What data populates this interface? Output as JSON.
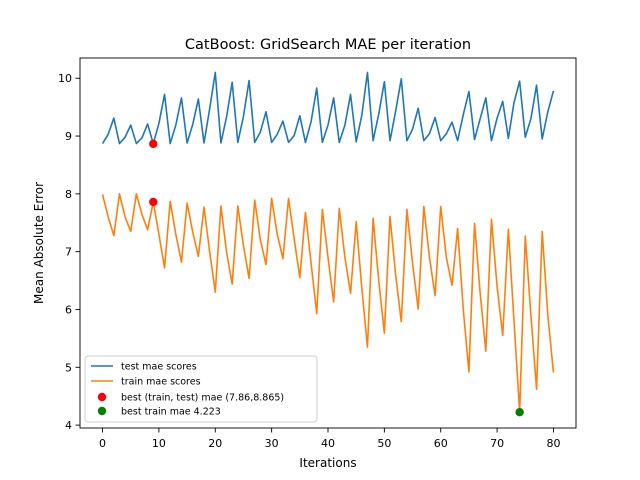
{
  "chart_data": {
    "type": "line",
    "title": "CatBoost: GridSearch MAE per iteration",
    "xlabel": "Iterations",
    "ylabel": "Mean Absolute Error",
    "xlim": [
      -4,
      84
    ],
    "ylim": [
      3.95,
      10.35
    ],
    "xticks": [
      0,
      10,
      20,
      30,
      40,
      50,
      60,
      70,
      80
    ],
    "yticks": [
      4,
      5,
      6,
      7,
      8,
      9,
      10
    ],
    "grid": false,
    "legend": "lower-left",
    "x": [
      0,
      1,
      2,
      3,
      4,
      5,
      6,
      7,
      8,
      9,
      10,
      11,
      12,
      13,
      14,
      15,
      16,
      17,
      18,
      19,
      20,
      21,
      22,
      23,
      24,
      25,
      26,
      27,
      28,
      29,
      30,
      31,
      32,
      33,
      34,
      35,
      36,
      37,
      38,
      39,
      40,
      41,
      42,
      43,
      44,
      45,
      46,
      47,
      48,
      49,
      50,
      51,
      52,
      53,
      54,
      55,
      56,
      57,
      58,
      59,
      60,
      61,
      62,
      63,
      64,
      65,
      66,
      67,
      68,
      69,
      70,
      71,
      72,
      73,
      74,
      75,
      76,
      77,
      78,
      79,
      80
    ],
    "series": [
      {
        "name": "test mae scores",
        "color": "#1f77b4",
        "values": [
          8.87,
          9.03,
          9.31,
          8.87,
          8.98,
          9.19,
          8.87,
          8.97,
          9.21,
          8.865,
          9.22,
          9.72,
          8.87,
          9.19,
          9.66,
          8.88,
          9.2,
          9.64,
          8.88,
          9.47,
          10.1,
          8.88,
          9.33,
          9.93,
          8.89,
          9.34,
          9.96,
          8.89,
          9.07,
          9.42,
          8.89,
          9.03,
          9.26,
          8.89,
          9.01,
          9.35,
          8.89,
          9.25,
          9.83,
          8.89,
          9.19,
          9.66,
          8.89,
          9.19,
          9.72,
          8.9,
          9.36,
          10.1,
          8.92,
          9.38,
          9.94,
          8.92,
          9.43,
          9.99,
          8.92,
          9.12,
          9.48,
          8.92,
          9.04,
          9.32,
          8.92,
          9.04,
          9.24,
          8.92,
          9.37,
          9.77,
          8.94,
          9.3,
          9.66,
          8.92,
          9.31,
          9.6,
          8.96,
          9.58,
          9.95,
          8.98,
          9.3,
          9.88,
          8.95,
          9.42,
          9.78
        ]
      },
      {
        "name": "train mae scores",
        "color": "#ff7f0e",
        "values": [
          7.99,
          7.6,
          7.28,
          8.0,
          7.6,
          7.35,
          8.0,
          7.64,
          7.38,
          7.86,
          7.3,
          6.72,
          7.87,
          7.3,
          6.82,
          7.84,
          7.34,
          6.92,
          7.77,
          7.0,
          6.3,
          7.79,
          6.99,
          6.44,
          7.79,
          7.1,
          6.54,
          7.89,
          7.2,
          6.78,
          7.92,
          7.3,
          6.88,
          7.92,
          7.22,
          6.55,
          7.68,
          6.8,
          5.93,
          7.73,
          6.9,
          6.13,
          7.75,
          6.9,
          6.28,
          7.52,
          6.37,
          5.35,
          7.58,
          6.5,
          5.59,
          7.61,
          6.6,
          5.79,
          7.73,
          6.8,
          6.01,
          7.78,
          6.9,
          6.24,
          7.78,
          6.9,
          6.42,
          7.4,
          6.0,
          4.92,
          7.49,
          6.28,
          5.28,
          7.56,
          6.4,
          5.55,
          7.39,
          5.8,
          4.223,
          7.27,
          5.9,
          4.62,
          7.35,
          5.9,
          4.91
        ]
      }
    ],
    "points": [
      {
        "name": "best (train, test) mae (7.86,8.865)",
        "color": "#ff0000",
        "xy": [
          [
            9,
            8.865
          ],
          [
            9,
            7.86
          ]
        ]
      },
      {
        "name": "best train mae 4.223",
        "color": "#008000",
        "xy": [
          [
            74,
            4.223
          ]
        ]
      }
    ]
  }
}
